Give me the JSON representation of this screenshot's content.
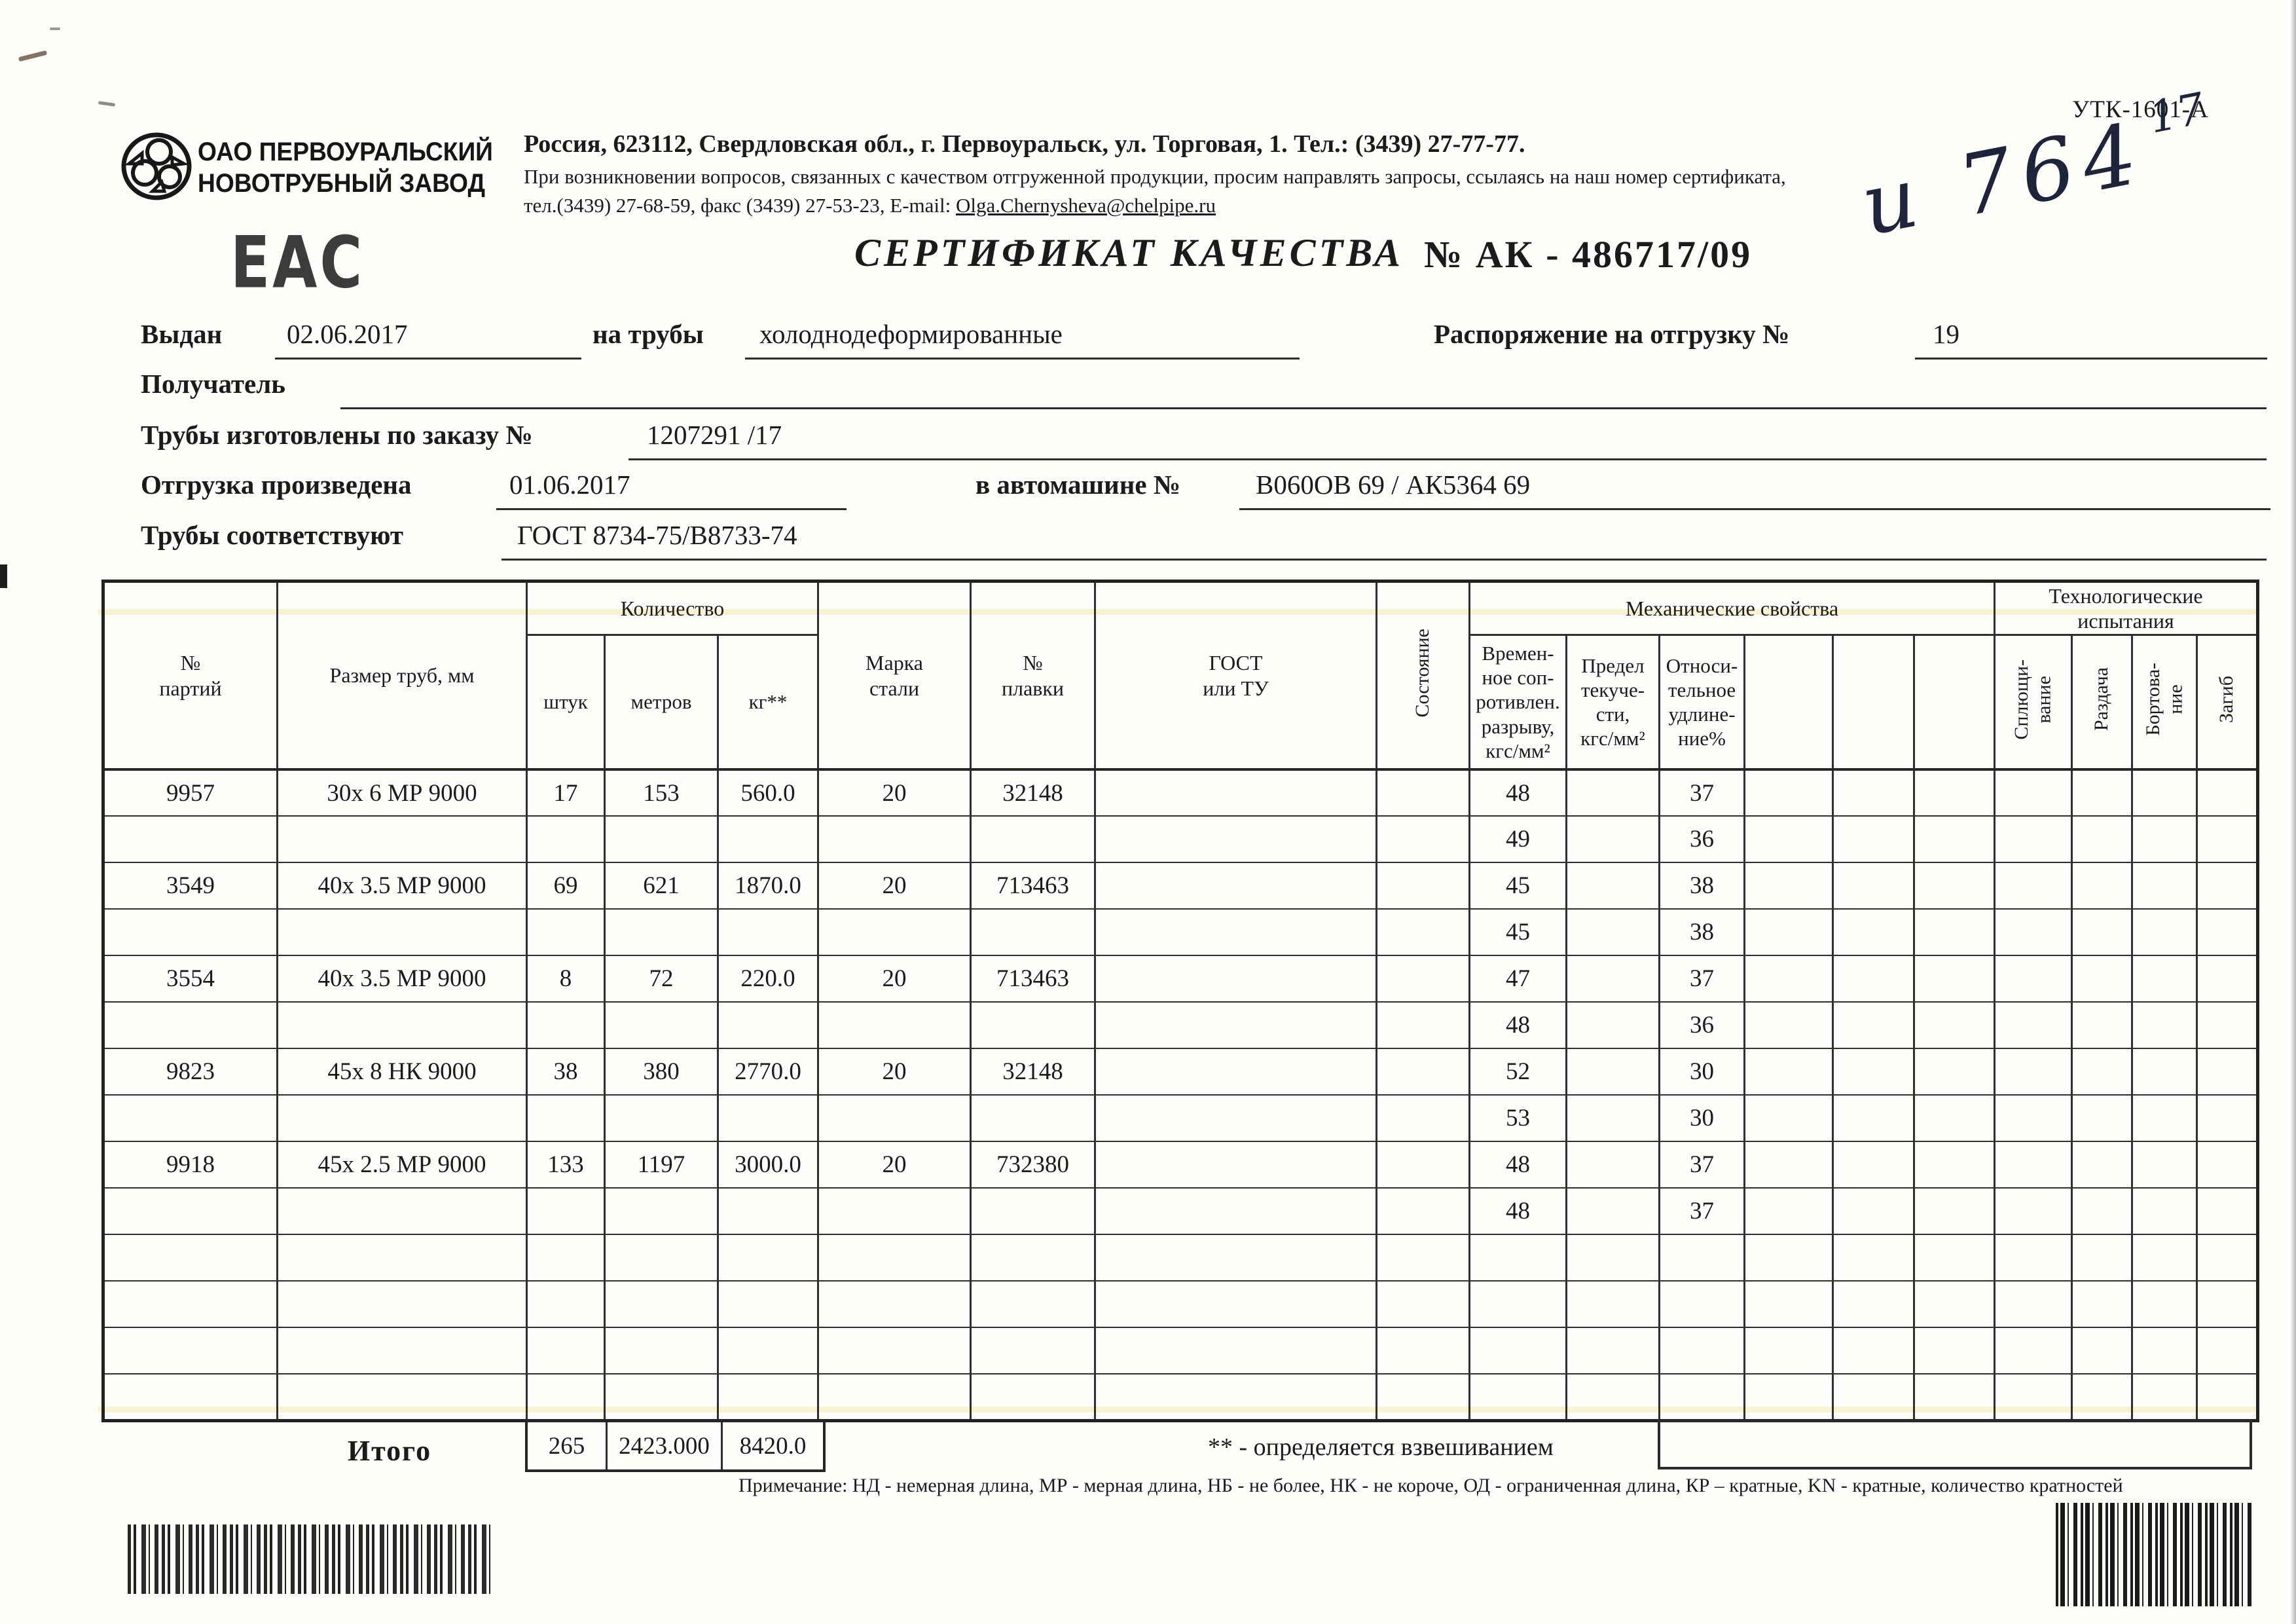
{
  "header": {
    "org_line1": "ОАО ПЕРВОУРАЛЬСКИЙ",
    "org_line2": "НОВОТРУБНЫЙ  ЗАВОД",
    "eac_mark": "ЕАС",
    "form_code": "УТК-1601-А",
    "address_line": "Россия, 623112, Свердловская обл., г. Первоуральск, ул. Торговая, 1. Тел.: (3439) 27-77-77.",
    "quality_note": "При возникновении вопросов, связанных с качеством отгруженной продукции, просим направлять запросы, ссылаясь на наш номер сертификата,",
    "contact_prefix": "тел.(3439) 27-68-59, факс (3439) 27-53-23,  E-mail: ",
    "email": "Olga.Chernysheva@chelpipe.ru",
    "handwritten_code": "и 764",
    "handwritten_sup": "17"
  },
  "title": {
    "main": "СЕРТИФИКАТ КАЧЕСТВА",
    "number": "№  АК -  486717/09"
  },
  "fields": {
    "issued_label": "Выдан",
    "issued_value": "02.06.2017",
    "pipes_label": "на трубы",
    "pipes_value": "холоднодеформированные",
    "order_ship_label": "Распоряжение на отгрузку №",
    "order_ship_value": "19",
    "receiver_label": "Получатель",
    "made_label": "Трубы изготовлены по заказу №",
    "made_value": "1207291  /17",
    "shipped_label": "Отгрузка произведена",
    "shipped_value": "01.06.2017",
    "truck_label": "в автомашине №",
    "truck_value": "В060ОВ 69 / АК5364 69",
    "conform_label": "Трубы соответствуют",
    "conform_value": "ГОСТ 8734-75/В8733-74"
  },
  "table": {
    "headers": {
      "batch": "№\nпартий",
      "size": "Размер труб, мм",
      "qty_group": "Количество",
      "pcs": "штук",
      "meters": "метров",
      "kg": "кг**",
      "grade": "Марка\nстали",
      "heat": "№\nплавки",
      "gost": "ГОСТ\nили ТУ",
      "cond": "Состояние",
      "mech_group": "Механические свойства",
      "tensile": "Времен-\nное соп-\nротивлен.\nразрыву,\nкгс/мм²",
      "yield": "Предел\nтекуче-\nсти,\nкгс/мм²",
      "elong": "Относи-\nтельное\nудлине-\nние%",
      "tech_group": "Технологические\nиспытания",
      "flatten": "Сплющи-\nвание",
      "expand": "Раздача",
      "flange": "Бортова-\nние",
      "bend": "Загиб"
    },
    "rows": [
      [
        "9957",
        "30х 6 МР 9000",
        "17",
        "153",
        "560.0",
        "20",
        "32148",
        "",
        "",
        "48",
        "",
        "37",
        "",
        "",
        "",
        "",
        "",
        "",
        ""
      ],
      [
        "",
        "",
        "",
        "",
        "",
        "",
        "",
        "",
        "",
        "49",
        "",
        "36",
        "",
        "",
        "",
        "",
        "",
        "",
        ""
      ],
      [
        "3549",
        "40х 3.5 МР 9000",
        "69",
        "621",
        "1870.0",
        "20",
        "713463",
        "",
        "",
        "45",
        "",
        "38",
        "",
        "",
        "",
        "",
        "",
        "",
        ""
      ],
      [
        "",
        "",
        "",
        "",
        "",
        "",
        "",
        "",
        "",
        "45",
        "",
        "38",
        "",
        "",
        "",
        "",
        "",
        "",
        ""
      ],
      [
        "3554",
        "40х 3.5 МР 9000",
        "8",
        "72",
        "220.0",
        "20",
        "713463",
        "",
        "",
        "47",
        "",
        "37",
        "",
        "",
        "",
        "",
        "",
        "",
        ""
      ],
      [
        "",
        "",
        "",
        "",
        "",
        "",
        "",
        "",
        "",
        "48",
        "",
        "36",
        "",
        "",
        "",
        "",
        "",
        "",
        ""
      ],
      [
        "9823",
        "45х 8 НК 9000",
        "38",
        "380",
        "2770.0",
        "20",
        "32148",
        "",
        "",
        "52",
        "",
        "30",
        "",
        "",
        "",
        "",
        "",
        "",
        ""
      ],
      [
        "",
        "",
        "",
        "",
        "",
        "",
        "",
        "",
        "",
        "53",
        "",
        "30",
        "",
        "",
        "",
        "",
        "",
        "",
        ""
      ],
      [
        "9918",
        "45х 2.5 МР 9000",
        "133",
        "1197",
        "3000.0",
        "20",
        "732380",
        "",
        "",
        "48",
        "",
        "37",
        "",
        "",
        "",
        "",
        "",
        "",
        ""
      ],
      [
        "",
        "",
        "",
        "",
        "",
        "",
        "",
        "",
        "",
        "48",
        "",
        "37",
        "",
        "",
        "",
        "",
        "",
        "",
        ""
      ],
      [
        "",
        "",
        "",
        "",
        "",
        "",
        "",
        "",
        "",
        "",
        "",
        "",
        "",
        "",
        "",
        "",
        "",
        "",
        ""
      ],
      [
        "",
        "",
        "",
        "",
        "",
        "",
        "",
        "",
        "",
        "",
        "",
        "",
        "",
        "",
        "",
        "",
        "",
        "",
        ""
      ],
      [
        "",
        "",
        "",
        "",
        "",
        "",
        "",
        "",
        "",
        "",
        "",
        "",
        "",
        "",
        "",
        "",
        "",
        "",
        ""
      ],
      [
        "",
        "",
        "",
        "",
        "",
        "",
        "",
        "",
        "",
        "",
        "",
        "",
        "",
        "",
        "",
        "",
        "",
        "",
        ""
      ]
    ]
  },
  "totals": {
    "label": "Итого",
    "pcs": "265",
    "meters": "2423.000",
    "kg": "8420.0"
  },
  "notes": {
    "weighing": "** - определяется взвешиванием",
    "legend": "Примечание: НД - немерная длина, МР - мерная длина, НБ - не более, НК - не короче, ОД - ограниченная длина, КР – кратные, KN - кратные, количество кратностей"
  }
}
